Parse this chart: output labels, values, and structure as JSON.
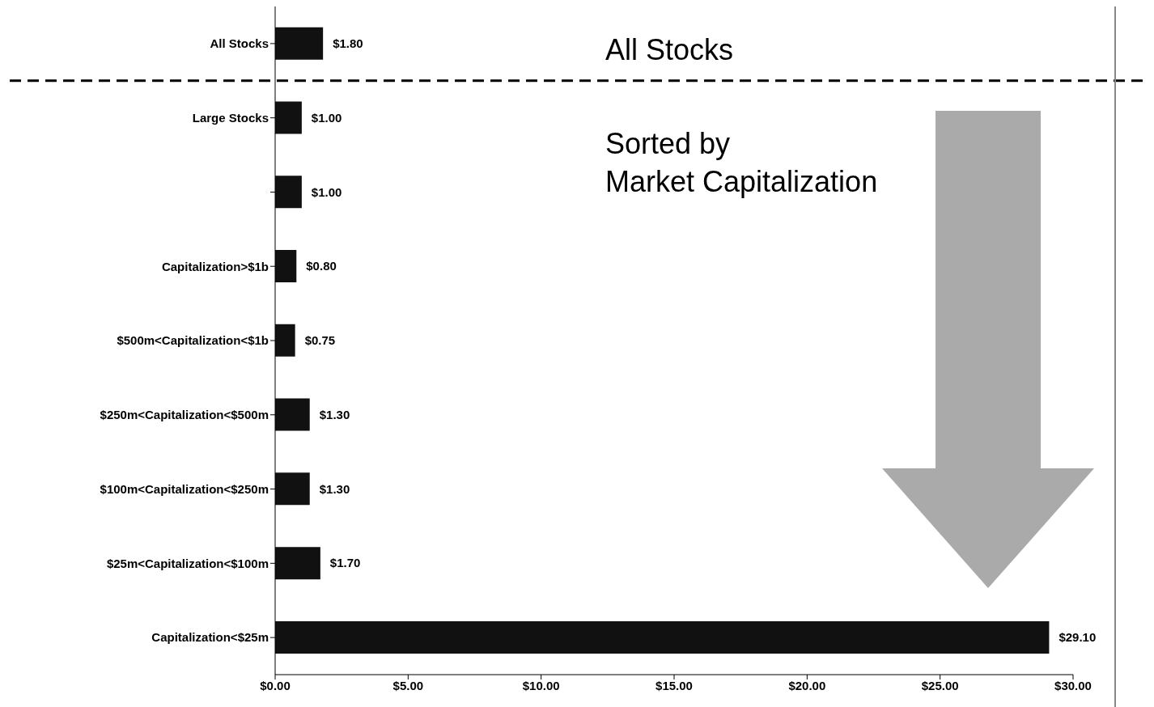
{
  "chart_data": {
    "type": "bar",
    "orientation": "horizontal",
    "categories": [
      "All Stocks",
      "Large Stocks",
      null,
      "Capitalization>$1b",
      "$500m<Capitalization<$1b",
      "$250m<Capitalization<$500m",
      "$100m<Capitalization<$250m",
      "$25m<Capitalization<$100m",
      "Capitalization<$25m"
    ],
    "values": [
      1.8,
      1.0,
      1.0,
      0.8,
      0.75,
      1.3,
      1.3,
      1.7,
      29.1
    ],
    "value_labels": [
      "$1.80",
      "$1.00",
      "$1.00",
      "$0.80",
      "$0.75",
      "$1.30",
      "$1.30",
      "$1.70",
      "$29.10"
    ],
    "color": "#111111",
    "xlim": [
      0,
      30
    ],
    "xticks": [
      {
        "value": 0,
        "label": "$0.00"
      },
      {
        "value": 5,
        "label": "$5.00"
      },
      {
        "value": 10,
        "label": "$10.00"
      },
      {
        "value": 15,
        "label": "$15.00"
      },
      {
        "value": 20,
        "label": "$20.00"
      },
      {
        "value": 25,
        "label": "$25.00"
      },
      {
        "value": 30,
        "label": "$30.00"
      }
    ],
    "annotations": [
      "All Stocks",
      "Sorted by\nMarket Capitalization"
    ],
    "grid": false,
    "legend": false
  }
}
